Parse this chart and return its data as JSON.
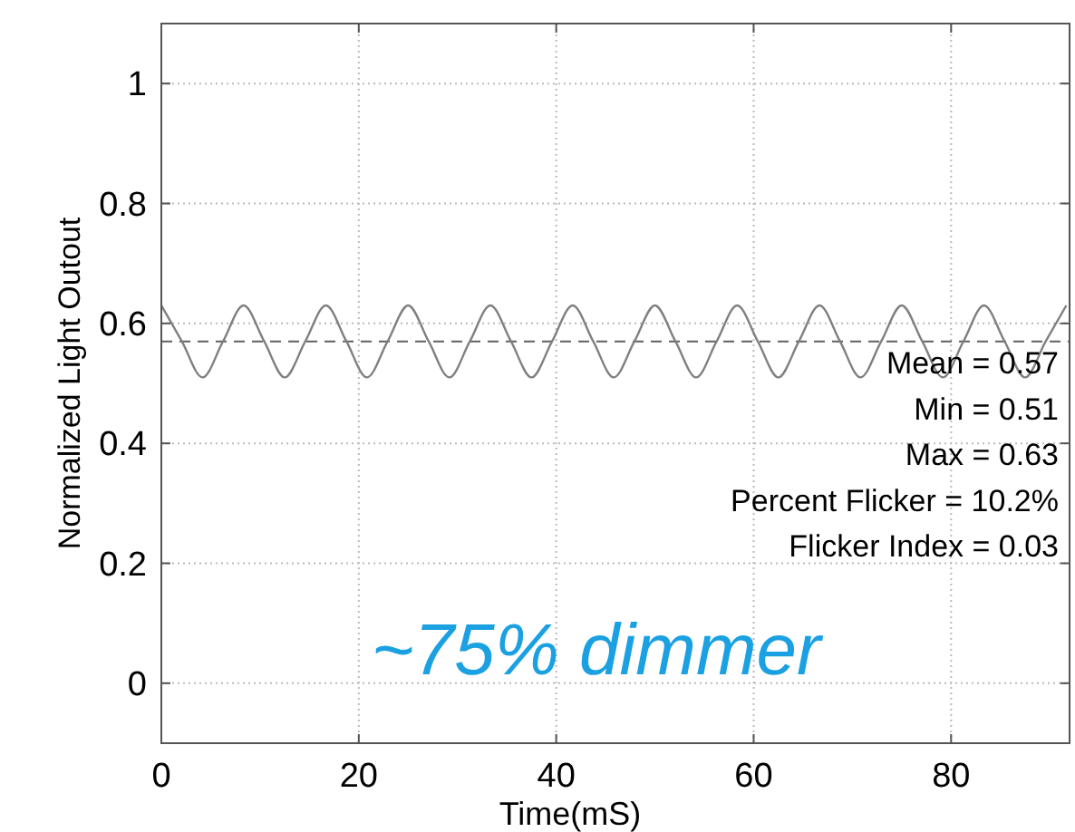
{
  "chart_data": {
    "type": "line",
    "xlabel": "Time(mS)",
    "ylabel": "Normalized Light Outout",
    "series": [
      {
        "color": "#808080",
        "x": [
          0,
          2.08,
          4.17,
          6.25,
          8.33,
          10.42,
          12.5,
          14.58,
          16.67,
          18.75,
          20.83,
          22.92,
          25,
          27.08,
          29.17,
          31.25,
          33.33,
          35.42,
          37.5,
          39.58,
          41.67,
          43.75,
          45.83,
          47.92,
          50,
          52.08,
          54.17,
          56.25,
          58.33,
          60.42,
          62.5,
          64.58,
          66.67,
          68.75,
          70.83,
          72.92,
          75,
          77.08,
          79.17,
          81.25,
          83.33,
          85.42,
          87.5,
          89.58,
          91.67
        ],
        "values": [
          0.63,
          0.57,
          0.51,
          0.57,
          0.63,
          0.57,
          0.51,
          0.57,
          0.63,
          0.57,
          0.51,
          0.57,
          0.63,
          0.57,
          0.51,
          0.57,
          0.63,
          0.57,
          0.51,
          0.57,
          0.63,
          0.57,
          0.51,
          0.57,
          0.63,
          0.57,
          0.51,
          0.57,
          0.63,
          0.57,
          0.51,
          0.57,
          0.63,
          0.57,
          0.51,
          0.57,
          0.63,
          0.57,
          0.51,
          0.57,
          0.63,
          0.57,
          0.51,
          0.57,
          0.63
        ]
      }
    ],
    "xlim": [
      0,
      92
    ],
    "xticks": [
      0,
      20,
      40,
      60,
      80
    ],
    "ylim": [
      -0.1,
      1.1
    ],
    "yticks": [
      0,
      0.2,
      0.4,
      0.6,
      0.8,
      1
    ],
    "grid": true,
    "marker": "none",
    "line_style": "solid",
    "ref_lines": [
      {
        "axis": "y",
        "value": 0.57,
        "color": "#606060",
        "line_style": "dashed"
      }
    ],
    "annotations": [
      "Mean = 0.57",
      "Min = 0.51",
      "Max = 0.63",
      "Percent Flicker = 10.2%",
      "Flicker Index = 0.03",
      "~75% dimmer"
    ]
  }
}
